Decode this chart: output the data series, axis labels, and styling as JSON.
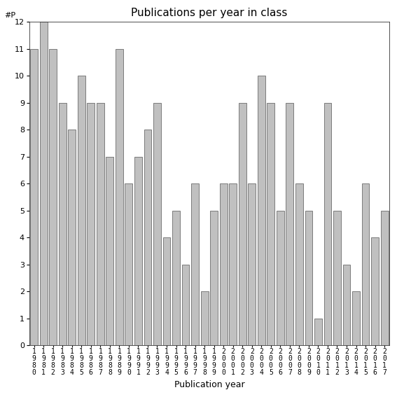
{
  "years": [
    "1980",
    "1981",
    "1982",
    "1983",
    "1984",
    "1985",
    "1986",
    "1987",
    "1988",
    "1989",
    "1990",
    "1991",
    "1992",
    "1993",
    "1994",
    "1995",
    "1996",
    "1997",
    "1998",
    "1999",
    "2000",
    "2001",
    "2002",
    "2003",
    "2004",
    "2005",
    "2006",
    "2007",
    "2008",
    "2009",
    "2010",
    "2011",
    "2012",
    "2013",
    "2014",
    "2015",
    "2016",
    "2017"
  ],
  "values": [
    11,
    12,
    11,
    9,
    8,
    10,
    9,
    9,
    7,
    11,
    6,
    7,
    8,
    9,
    4,
    5,
    3,
    6,
    2,
    5,
    6,
    6,
    9,
    6,
    10,
    9,
    5,
    9,
    6,
    5,
    1,
    9,
    5,
    3,
    2,
    6,
    4,
    5
  ],
  "bar_color": "#c0c0c0",
  "bar_edgecolor": "#555555",
  "title": "Publications per year in class",
  "xlabel": "Publication year",
  "ylabel": "#P",
  "ylim": [
    0,
    12
  ],
  "yticks": [
    0,
    1,
    2,
    3,
    4,
    5,
    6,
    7,
    8,
    9,
    10,
    11,
    12
  ],
  "title_fontsize": 11,
  "label_fontsize": 9,
  "tick_fontsize": 8,
  "bg_color": "#ffffff"
}
